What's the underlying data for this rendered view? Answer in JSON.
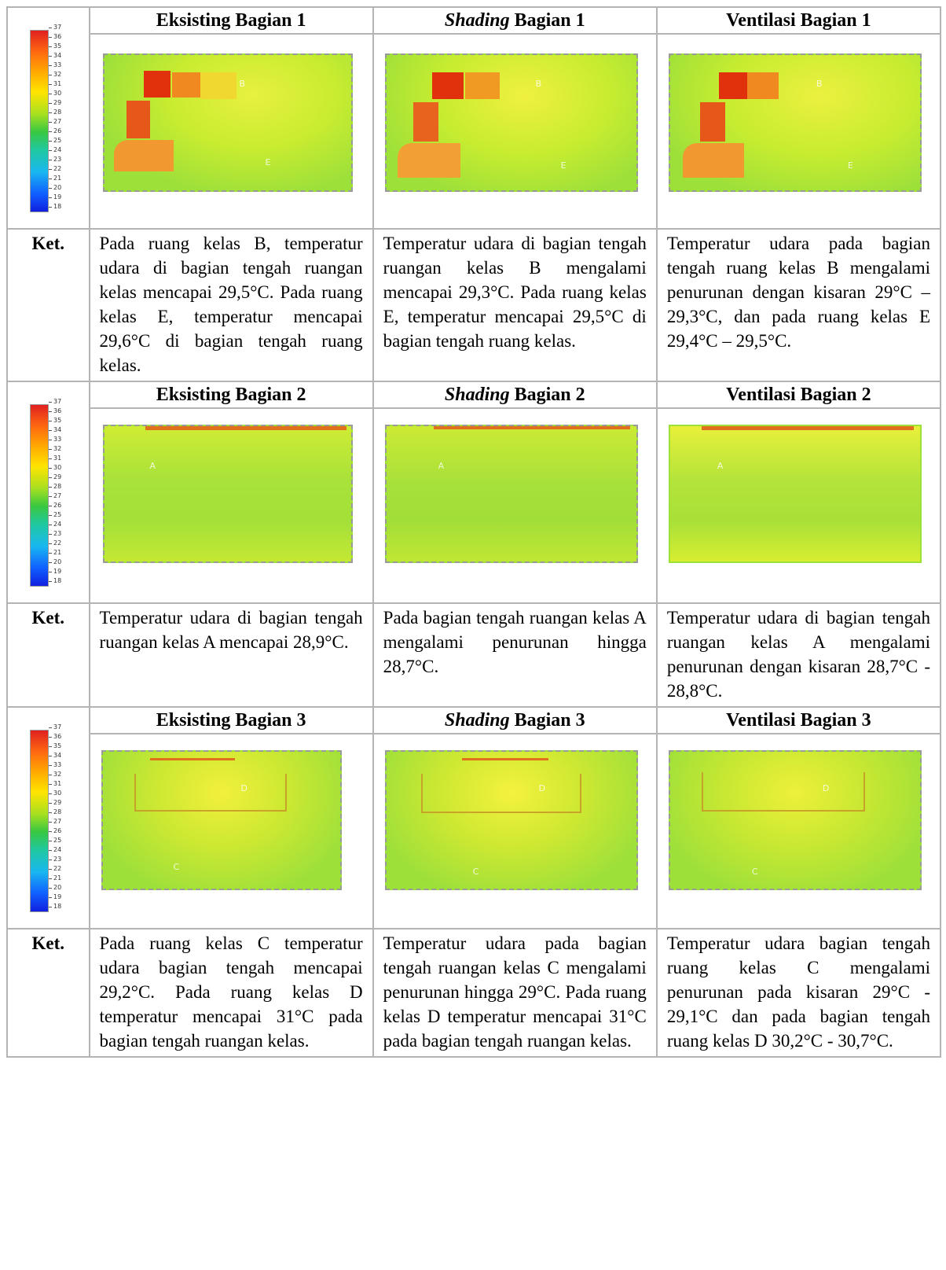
{
  "legend": {
    "ticks": [
      "37",
      "36",
      "35",
      "34",
      "33",
      "32",
      "31",
      "30",
      "29",
      "28",
      "27",
      "26",
      "25",
      "24",
      "23",
      "22",
      "21",
      "20",
      "19",
      "18"
    ]
  },
  "sections": [
    {
      "headers": [
        {
          "pre": "",
          "em": "",
          "post": "Eksisting Bagian 1"
        },
        {
          "pre": "",
          "em": "Shading",
          "post": " Bagian 1"
        },
        {
          "pre": "",
          "em": "",
          "post": "Ventilasi Bagian 1"
        }
      ],
      "ket": "Ket.",
      "descriptions": [
        "Pada ruang kelas B, temperatur udara di bagian tengah ruangan kelas mencapai 29,5°C. Pada ruang kelas E, temperatur mencapai 29,6°C di bagian tengah ruang kelas.",
        "Temperatur udara di bagian tengah ruangan kelas B mengalami mencapai 29,3°C. Pada ruang kelas E, temperatur mencapai 29,5°C di bagian tengah ruang kelas.",
        "Temperatur udara pada bagian tengah ruang kelas B mengalami penurunan dengan kisaran 29°C – 29,3°C, dan pada ruang kelas E 29,4°C – 29,5°C."
      ],
      "room_labels": [
        "B",
        "E"
      ]
    },
    {
      "headers": [
        {
          "pre": "",
          "em": "",
          "post": "Eksisting Bagian 2"
        },
        {
          "pre": "",
          "em": "Shading",
          "post": " Bagian 2"
        },
        {
          "pre": "",
          "em": "",
          "post": "Ventilasi Bagian 2"
        }
      ],
      "ket": "Ket.",
      "descriptions": [
        "Temperatur udara di bagian tengah ruangan kelas A mencapai 28,9°C.",
        "Pada bagian tengah ruangan kelas A mengalami penurunan hingga 28,7°C.",
        "Temperatur udara di bagian tengah ruangan kelas A mengalami penurunan dengan kisaran 28,7°C - 28,8°C."
      ],
      "room_labels": [
        "A"
      ]
    },
    {
      "headers": [
        {
          "pre": "",
          "em": "",
          "post": "Eksisting Bagian 3"
        },
        {
          "pre": "",
          "em": "Shading",
          "post": " Bagian 3"
        },
        {
          "pre": "",
          "em": "",
          "post": "Ventilasi Bagian 3"
        }
      ],
      "ket": "Ket.",
      "descriptions": [
        "Pada ruang kelas C temperatur udara bagian tengah mencapai 29,2°C. Pada ruang kelas D temperatur mencapai 31°C pada bagian tengah ruangan kelas.",
        "Temperatur udara pada bagian tengah ruangan kelas C mengalami penurunan hingga 29°C. Pada ruang kelas D temperatur mencapai 31°C pada bagian tengah ruangan kelas.",
        "Temperatur udara bagian tengah ruang kelas C mengalami penurunan pada kisaran 29°C - 29,1°C dan pada bagian tengah ruang kelas D 30,2°C - 30,7°C."
      ],
      "room_labels": [
        "D",
        "C"
      ]
    }
  ]
}
